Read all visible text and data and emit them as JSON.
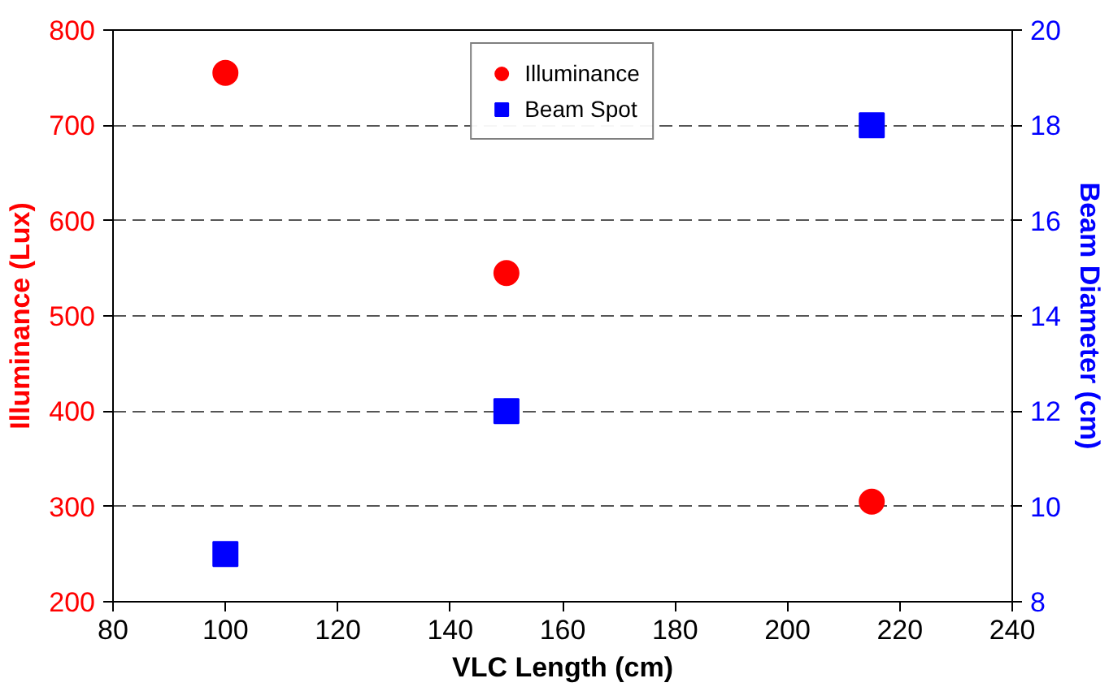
{
  "chart_data": {
    "type": "scatter",
    "xlabel": "VLC Length (cm)",
    "ylabel": "Illuminance (Lux)",
    "y2label": "Beam Diameter (cm)",
    "x": [
      100,
      150,
      215
    ],
    "series": [
      {
        "name": "Illuminance",
        "color": "#ff0000",
        "values": [
          755,
          545,
          305
        ],
        "marker": "circle"
      },
      {
        "name": "Beam Spot",
        "color": "#0000ff",
        "values": [
          9,
          12,
          18
        ],
        "marker": "square",
        "axis": "y2"
      }
    ],
    "xlim": [
      80,
      240
    ],
    "xticks": [
      80,
      100,
      120,
      140,
      160,
      180,
      200,
      220,
      240
    ],
    "ylim": [
      200,
      800
    ],
    "yticks": [
      200,
      300,
      400,
      500,
      600,
      700,
      800
    ],
    "y2lim": [
      8,
      20
    ],
    "y2ticks": [
      8,
      10,
      12,
      14,
      16,
      18,
      20
    ],
    "grid": "y",
    "line_style": "dashed",
    "legend": "top"
  }
}
